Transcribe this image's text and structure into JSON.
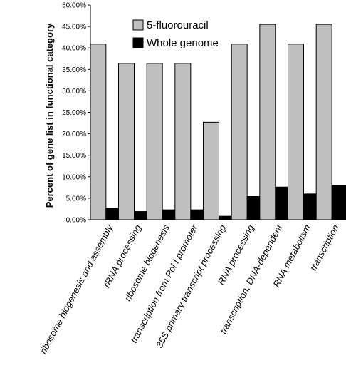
{
  "chart_data": {
    "type": "bar",
    "ylabel": "Percent of gene list in functional category",
    "ylim": [
      0,
      50
    ],
    "yticks": [
      "0.00%",
      "5.00%",
      "10.00%",
      "15.00%",
      "20.00%",
      "25.00%",
      "30.00%",
      "35.00%",
      "40.00%",
      "45.00%",
      "50.00%"
    ],
    "categories": [
      "ribosome biogenesis and assembly",
      "rRNA processing",
      "ribosome biogenesis",
      "transcription from Pol I promoter",
      "35S primary transcript processing",
      "RNA processing",
      "transcription, DNA-dependent",
      "RNA metabolism",
      "transcription"
    ],
    "series": [
      {
        "name": "5-fluorouracil",
        "color": "#c0c0c0",
        "values": [
          40.9,
          36.4,
          36.4,
          36.4,
          22.7,
          40.9,
          45.5,
          40.9,
          45.5
        ]
      },
      {
        "name": "Whole genome",
        "color": "#000000",
        "values": [
          2.7,
          1.9,
          2.3,
          2.3,
          0.8,
          5.4,
          7.6,
          6.0,
          8.0
        ]
      }
    ],
    "legend": "top-center",
    "grid": false
  }
}
